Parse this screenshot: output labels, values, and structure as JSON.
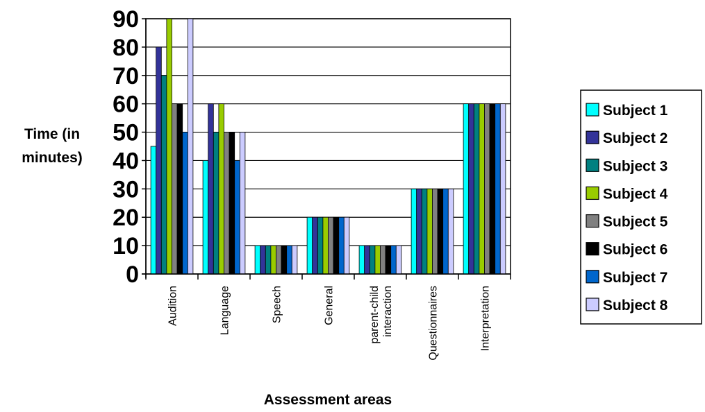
{
  "chart_data": {
    "type": "bar",
    "title": "",
    "xlabel": "Assessment areas",
    "ylabel": [
      "Time (in",
      "minutes)"
    ],
    "ylim": [
      0,
      90
    ],
    "yticks": [
      0,
      10,
      20,
      30,
      40,
      50,
      60,
      70,
      80,
      90
    ],
    "grid": true,
    "legend_position": "right",
    "categories": [
      [
        "Audition"
      ],
      [
        "Language"
      ],
      [
        "Speech"
      ],
      [
        "General"
      ],
      [
        "parent-child",
        "interaction"
      ],
      [
        "Questionnaires"
      ],
      [
        "Interpretation"
      ]
    ],
    "series": [
      {
        "name": "Subject 1",
        "color": "#00ffff",
        "values": [
          45,
          40,
          10,
          20,
          10,
          30,
          60
        ]
      },
      {
        "name": "Subject 2",
        "color": "#333399",
        "values": [
          80,
          60,
          10,
          20,
          10,
          30,
          60
        ]
      },
      {
        "name": "Subject 3",
        "color": "#008080",
        "values": [
          70,
          50,
          10,
          20,
          10,
          30,
          60
        ]
      },
      {
        "name": "Subject 4",
        "color": "#99cc00",
        "values": [
          90,
          60,
          10,
          20,
          10,
          30,
          60
        ]
      },
      {
        "name": "Subject 5",
        "color": "#808080",
        "values": [
          60,
          50,
          10,
          20,
          10,
          30,
          60
        ]
      },
      {
        "name": "Subject 6",
        "color": "#000000",
        "values": [
          60,
          50,
          10,
          20,
          10,
          30,
          60
        ]
      },
      {
        "name": "Subject 7",
        "color": "#0066cc",
        "values": [
          50,
          40,
          10,
          20,
          10,
          30,
          60
        ]
      },
      {
        "name": "Subject 8",
        "color": "#ccccff",
        "values": [
          90,
          50,
          10,
          20,
          10,
          30,
          60
        ]
      }
    ]
  }
}
